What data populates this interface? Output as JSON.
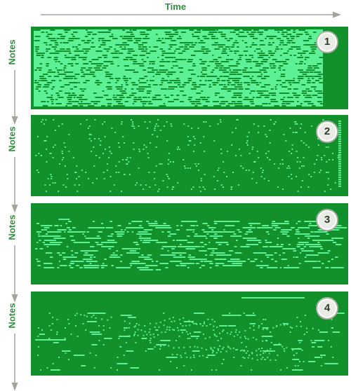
{
  "header": {
    "time_label": "Time"
  },
  "notes_label": "Notes",
  "colors": {
    "background": "#11902b",
    "note": "#5ef095",
    "label": "#2f8f3d",
    "arrow": "#9fa79a"
  },
  "panels": [
    {
      "badge": "1",
      "density": "very-dense"
    },
    {
      "badge": "2",
      "density": "sparse-dots"
    },
    {
      "badge": "3",
      "density": "medium-lines"
    },
    {
      "badge": "4",
      "density": "sparse-melodic"
    }
  ]
}
